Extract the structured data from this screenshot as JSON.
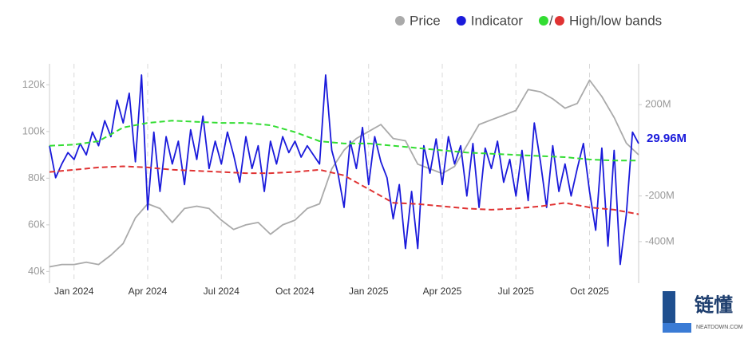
{
  "chart_data": {
    "type": "line",
    "legend_separator": "/",
    "xlim": [
      -1,
      23
    ],
    "xticks": [
      {
        "value": 0,
        "label": "Jan 2024"
      },
      {
        "value": 3,
        "label": "Apr 2024"
      },
      {
        "value": 6,
        "label": "Jul 2024"
      },
      {
        "value": 9,
        "label": "Oct 2024"
      },
      {
        "value": 12,
        "label": "Jan 2025"
      },
      {
        "value": 15,
        "label": "Apr 2025"
      },
      {
        "value": 18,
        "label": "Jul 2025"
      },
      {
        "value": 21,
        "label": "Oct 2025"
      }
    ],
    "ylim": [
      35,
      129
    ],
    "yticks": [
      {
        "value": 40,
        "label": "40k"
      },
      {
        "value": 60,
        "label": "60k"
      },
      {
        "value": 80,
        "label": "80k"
      },
      {
        "value": 100,
        "label": "100k"
      },
      {
        "value": 120,
        "label": "120k"
      }
    ],
    "y2lim": [
      -582,
      379
    ],
    "y2ticks": [
      {
        "value": 200,
        "label": "200M"
      },
      {
        "value": -200,
        "label": "-200M"
      },
      {
        "value": -400,
        "label": "-400M"
      }
    ],
    "grid": true,
    "series": [
      {
        "name": "Price",
        "color": "#aaaaaa",
        "x": [
          -1,
          -0.5,
          0,
          0.5,
          1,
          1.5,
          2,
          2.5,
          3,
          3.5,
          4,
          4.5,
          5,
          5.5,
          6,
          6.5,
          7,
          7.5,
          8,
          8.5,
          9,
          9.5,
          10,
          10.5,
          11,
          11.5,
          12,
          12.5,
          13,
          13.5,
          14,
          14.5,
          15,
          15.5,
          16,
          16.5,
          17,
          17.5,
          18,
          18.5,
          19,
          19.5,
          20,
          20.5,
          21,
          21.5,
          22,
          22.5,
          23
        ],
        "values": [
          42,
          43,
          43,
          44,
          43,
          47,
          52,
          63,
          69,
          67,
          61,
          67,
          68,
          67,
          62,
          58,
          60,
          61,
          56,
          60,
          62,
          67,
          69,
          84,
          92,
          97,
          100,
          103,
          97,
          96,
          86,
          84,
          82,
          85,
          94,
          103,
          105,
          107,
          109,
          118,
          117,
          114,
          110,
          112,
          122,
          115,
          106,
          95,
          90
        ]
      },
      {
        "name": "Indicator",
        "color": "#1a1adb",
        "axis": "y2",
        "x": [
          -1,
          -0.75,
          -0.5,
          -0.25,
          0,
          0.25,
          0.5,
          0.75,
          1,
          1.25,
          1.5,
          1.75,
          2,
          2.25,
          2.5,
          2.75,
          3,
          3.25,
          3.5,
          3.75,
          4,
          4.25,
          4.5,
          4.75,
          5,
          5.25,
          5.5,
          5.75,
          6,
          6.25,
          6.5,
          6.75,
          7,
          7.25,
          7.5,
          7.75,
          8,
          8.25,
          8.5,
          8.75,
          9,
          9.25,
          9.5,
          9.75,
          10,
          10.25,
          10.5,
          10.75,
          11,
          11.25,
          11.5,
          11.75,
          12,
          12.25,
          12.5,
          12.75,
          13,
          13.25,
          13.5,
          13.75,
          14,
          14.25,
          14.5,
          14.75,
          15,
          15.25,
          15.5,
          15.75,
          16,
          16.25,
          16.5,
          16.75,
          17,
          17.25,
          17.5,
          17.75,
          18,
          18.25,
          18.5,
          18.75,
          19,
          19.25,
          19.5,
          19.75,
          20,
          20.25,
          20.5,
          20.75,
          21,
          21.25,
          21.5,
          21.75,
          22,
          22.25,
          22.5,
          22.75,
          23
        ],
        "values": [
          20,
          -120,
          -60,
          -10,
          -40,
          30,
          -20,
          80,
          20,
          130,
          60,
          220,
          120,
          250,
          -50,
          330,
          -260,
          80,
          -180,
          60,
          -60,
          40,
          -150,
          90,
          -40,
          150,
          -80,
          40,
          -60,
          80,
          -20,
          -140,
          60,
          -80,
          20,
          -180,
          40,
          -60,
          60,
          -10,
          40,
          -30,
          20,
          -20,
          -60,
          330,
          0,
          -100,
          -250,
          40,
          -80,
          100,
          -150,
          60,
          -50,
          -120,
          -300,
          -150,
          -430,
          -180,
          -430,
          20,
          -100,
          50,
          -150,
          60,
          -60,
          20,
          -200,
          30,
          -250,
          10,
          -80,
          40,
          -140,
          -40,
          -200,
          0,
          -220,
          120,
          -50,
          -250,
          20,
          -180,
          -60,
          -200,
          -80,
          30,
          -180,
          -350,
          10,
          -420,
          0,
          -500,
          -280,
          80,
          29.96
        ]
      },
      {
        "name": "High/low bands",
        "colors": [
          "#33dd33",
          "#e03333"
        ],
        "axis": "y2",
        "x": [
          -1,
          0,
          1,
          2,
          3,
          4,
          5,
          6,
          7,
          8,
          9,
          10,
          11,
          12,
          13,
          14,
          15,
          16,
          17,
          18,
          19,
          20,
          21,
          22,
          23
        ],
        "high": [
          20,
          25,
          40,
          100,
          120,
          130,
          125,
          120,
          120,
          110,
          80,
          40,
          30,
          30,
          20,
          10,
          0,
          -10,
          -15,
          -20,
          -25,
          -30,
          -40,
          -45,
          -45
        ],
        "low": [
          -95,
          -85,
          -75,
          -70,
          -75,
          -85,
          -90,
          -95,
          -100,
          -100,
          -95,
          -85,
          -110,
          -170,
          -230,
          -235,
          -245,
          -255,
          -260,
          -255,
          -245,
          -230,
          -250,
          -260,
          -280
        ]
      }
    ],
    "annotations": [
      {
        "text": "29.96M",
        "x": 23,
        "y": 29.96,
        "axis": "y2"
      }
    ]
  },
  "watermark": {
    "name": "链懂",
    "site": "NEATDOWN.COM"
  }
}
